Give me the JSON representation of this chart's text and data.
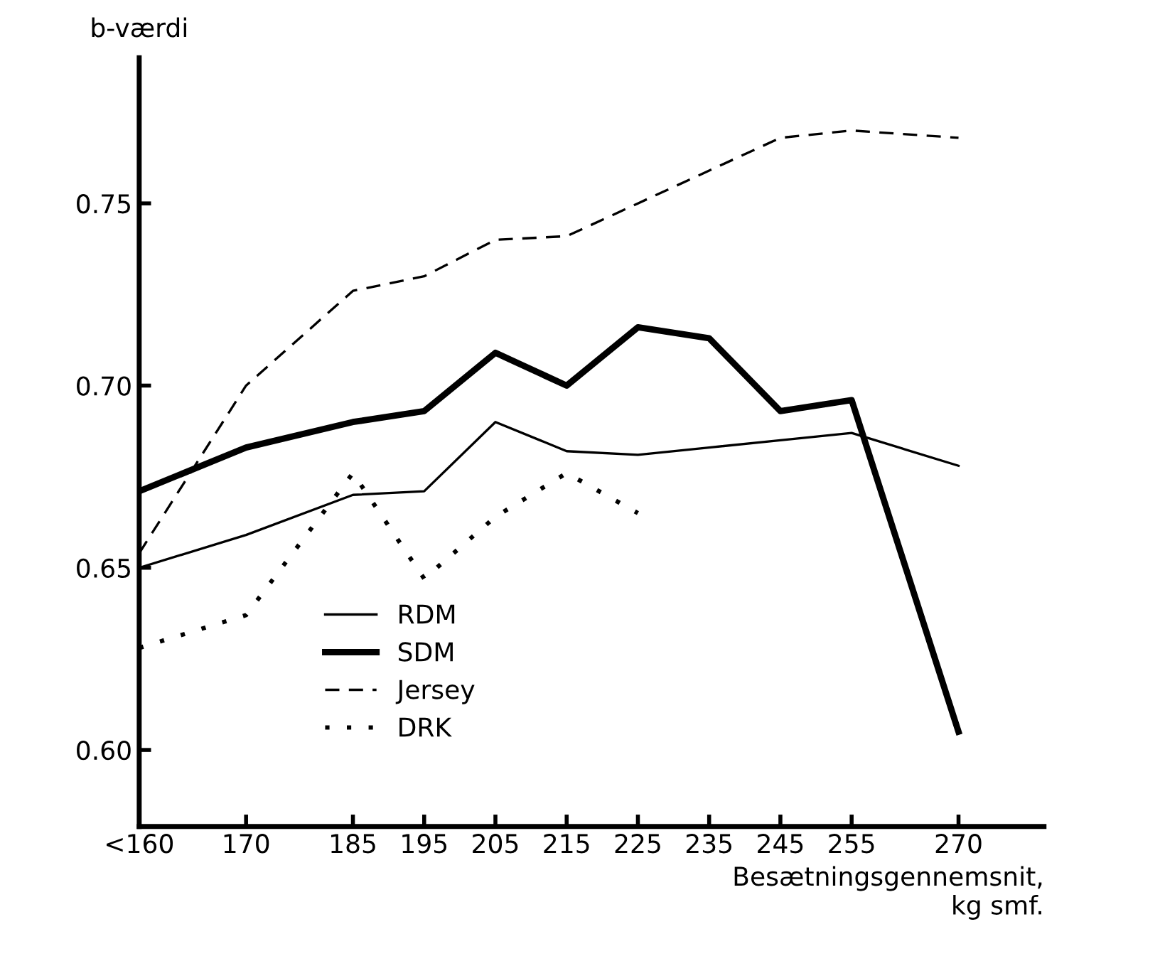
{
  "chart_data": {
    "type": "line",
    "ylabel": "b-værdi",
    "xlabel": "Besætningsgennemsnit,\nkg smf.",
    "x": [
      155,
      170,
      185,
      195,
      205,
      215,
      225,
      235,
      245,
      255,
      270
    ],
    "series": [
      {
        "name": "RDM",
        "color": "#000000",
        "line_style": "solid",
        "values": [
          0.65,
          0.659,
          0.67,
          0.671,
          0.69,
          0.682,
          0.681,
          0.683,
          0.685,
          0.687,
          0.678
        ]
      },
      {
        "name": "SDM",
        "color": "#000000",
        "line_style": "solid",
        "values": [
          0.671,
          0.683,
          0.69,
          0.693,
          0.709,
          0.7,
          0.716,
          0.713,
          0.693,
          0.696,
          0.605
        ]
      },
      {
        "name": "Jersey",
        "color": "#000000",
        "line_style": "dashed",
        "values": [
          0.654,
          0.7,
          0.726,
          0.73,
          0.74,
          0.741,
          0.75,
          0.759,
          0.768,
          0.77,
          0.768
        ]
      },
      {
        "name": "DRK",
        "color": "#000000",
        "line_style": "dotted",
        "values": [
          0.628,
          0.637,
          0.676,
          0.647,
          0.664,
          0.676,
          0.665,
          null,
          null,
          null,
          null
        ]
      }
    ],
    "xlim": [
      155,
      282
    ],
    "ylim": [
      0.579,
      0.79
    ],
    "xticks": [
      {
        "value": 155,
        "label": "<160"
      },
      170,
      185,
      195,
      205,
      215,
      225,
      235,
      245,
      255,
      270
    ],
    "yticks": [
      {
        "value": 0.6,
        "label": "0.60"
      },
      0.65,
      {
        "value": 0.7,
        "label": "0.70"
      },
      0.75
    ],
    "grid": false,
    "legend": "bottom left",
    "marker": "none"
  }
}
